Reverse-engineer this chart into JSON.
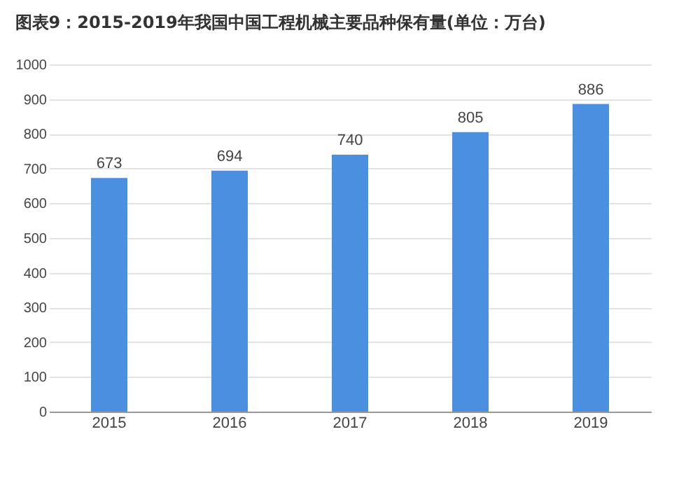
{
  "chart_data": {
    "type": "bar",
    "title": "图表9：2015-2019年我国中国工程机械主要品种保有量(单位：万台)",
    "categories": [
      "2015",
      "2016",
      "2017",
      "2018",
      "2019"
    ],
    "values": [
      673,
      694,
      740,
      805,
      886
    ],
    "color": "#4a8fe0",
    "ylim": [
      0,
      1000
    ],
    "yticks": [
      0,
      100,
      200,
      300,
      400,
      500,
      600,
      700,
      800,
      900,
      1000
    ],
    "grid": "y",
    "data_labels": true
  }
}
